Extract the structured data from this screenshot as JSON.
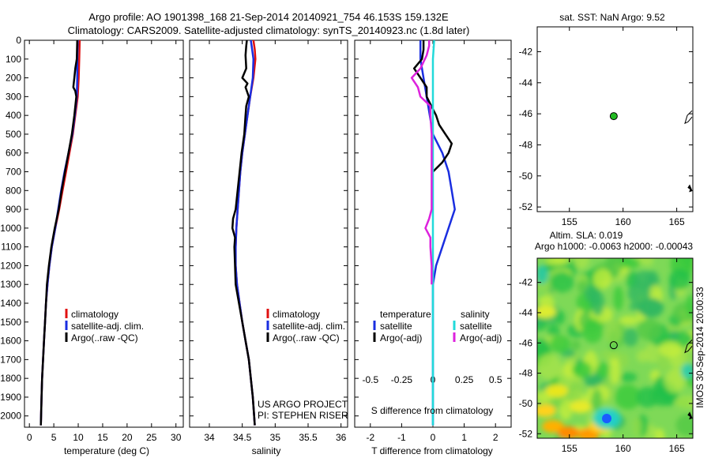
{
  "header": {
    "line1": "Argo profile: AO 1901398_168 21-Sep-2014 20140921_754 46.153S 159.132E",
    "line2": "Climatology: CARS2009. Satellite-adjusted climatology: synTS_20140923.nc (1.8d later)"
  },
  "colors": {
    "climatology": "#e01010",
    "satellite": "#1a2ee0",
    "argo": "#000000",
    "satellite_salinity": "#22dada",
    "argo_salinity": "#dd22dd",
    "float_marker": "#22bb22"
  },
  "chart_data": [
    {
      "type": "line",
      "id": "temperature-profile",
      "xlabel": "temperature (deg C)",
      "ylabel": "",
      "xlim": [
        -1,
        31.5
      ],
      "ylim": [
        2060,
        0
      ],
      "xticks": [
        "0",
        "5",
        "10",
        "15",
        "20",
        "25",
        "30"
      ],
      "xtick_values": [
        0,
        5,
        10,
        15,
        20,
        25,
        30
      ],
      "yticks": [
        "0",
        "100",
        "200",
        "300",
        "400",
        "500",
        "600",
        "700",
        "800",
        "900",
        "1000",
        "1100",
        "1200",
        "1300",
        "1400",
        "1500",
        "1600",
        "1700",
        "1800",
        "1900",
        "2000"
      ],
      "ytick_values": [
        0,
        100,
        200,
        300,
        400,
        500,
        600,
        700,
        800,
        900,
        1000,
        1100,
        1200,
        1300,
        1400,
        1500,
        1600,
        1700,
        1800,
        1900,
        2000
      ],
      "legend": [
        "climatology",
        "satellite-adj. clim.",
        "Argo(..raw -QC)"
      ],
      "series": [
        {
          "name": "climatology",
          "color": "#e01010",
          "depth": [
            0,
            100,
            200,
            300,
            400,
            500,
            600,
            700,
            800,
            900,
            1000,
            1100,
            1200,
            1300,
            1400,
            1500,
            1600,
            1700,
            1800,
            1900,
            2000,
            2050
          ],
          "values": [
            10.3,
            10.2,
            10.1,
            9.9,
            9.4,
            8.9,
            8.2,
            7.5,
            6.8,
            6.1,
            5.3,
            4.6,
            4.1,
            3.7,
            3.4,
            3.2,
            3.0,
            2.8,
            2.6,
            2.5,
            2.4,
            2.35
          ]
        },
        {
          "name": "satellite-adj. clim.",
          "color": "#1a2ee0",
          "depth": [
            0,
            100,
            200,
            300,
            400,
            500,
            600,
            700,
            800,
            900,
            1000,
            1100,
            1200,
            1300,
            1400,
            1500,
            1600,
            1700,
            1800,
            1900,
            2000,
            2050
          ],
          "values": [
            9.9,
            9.8,
            9.8,
            9.7,
            9.3,
            8.8,
            8.0,
            7.2,
            6.5,
            5.9,
            5.3,
            4.6,
            4.1,
            3.7,
            3.4,
            3.2,
            3.0,
            2.8,
            2.6,
            2.5,
            2.4,
            2.35
          ]
        },
        {
          "name": "Argo(..raw -QC)",
          "color": "#000000",
          "depth": [
            0,
            100,
            150,
            200,
            250,
            270,
            300,
            400,
            500,
            600,
            700,
            800,
            900,
            1000,
            1100,
            1200,
            1300,
            1400,
            1500,
            1600,
            1700,
            1800,
            1900,
            2000,
            2050
          ],
          "values": [
            9.8,
            9.7,
            9.4,
            9.2,
            9.0,
            9.4,
            9.6,
            9.2,
            8.7,
            8.0,
            7.3,
            6.6,
            6.0,
            5.2,
            4.5,
            4.0,
            3.6,
            3.4,
            3.2,
            3.0,
            2.8,
            2.6,
            2.5,
            2.4,
            2.35
          ]
        }
      ]
    },
    {
      "type": "line",
      "id": "salinity-profile",
      "xlabel": "salinity",
      "xlim": [
        33.7,
        36.1
      ],
      "ylim": [
        2060,
        0
      ],
      "xticks": [
        "34",
        "34.5",
        "35",
        "35.5",
        "36"
      ],
      "xtick_values": [
        34,
        34.5,
        35,
        35.5,
        36
      ],
      "legend": [
        "climatology",
        "satellite-adj. clim.",
        "Argo(..raw -QC)"
      ],
      "annotation": [
        "US ARGO PROJECT",
        "PI: STEPHEN RISER"
      ],
      "series": [
        {
          "name": "climatology",
          "color": "#e01010",
          "depth": [
            0,
            50,
            100,
            200,
            300,
            400,
            500,
            600,
            700,
            800,
            900,
            1000,
            1100,
            1200,
            1300,
            1400,
            1500,
            1600,
            1700,
            1800,
            1900,
            2000,
            2050
          ],
          "values": [
            34.67,
            34.69,
            34.7,
            34.67,
            34.62,
            34.58,
            34.54,
            34.5,
            34.47,
            34.45,
            34.43,
            34.41,
            34.4,
            34.4,
            34.42,
            34.46,
            34.5,
            34.55,
            34.6,
            34.63,
            34.66,
            34.68,
            34.69
          ]
        },
        {
          "name": "satellite-adj. clim.",
          "color": "#1a2ee0",
          "depth": [
            0,
            50,
            100,
            200,
            300,
            400,
            500,
            600,
            700,
            800,
            900,
            1000,
            1100,
            1200,
            1300,
            1400,
            1500,
            1600,
            1700,
            1800,
            1900,
            2000,
            2050
          ],
          "values": [
            34.63,
            34.65,
            34.67,
            34.66,
            34.62,
            34.58,
            34.54,
            34.5,
            34.47,
            34.45,
            34.43,
            34.41,
            34.4,
            34.4,
            34.42,
            34.46,
            34.5,
            34.55,
            34.6,
            34.63,
            34.66,
            34.68,
            34.69
          ]
        },
        {
          "name": "Argo(..raw -QC)",
          "color": "#000000",
          "depth": [
            0,
            30,
            80,
            150,
            200,
            230,
            250,
            300,
            350,
            400,
            500,
            600,
            700,
            800,
            900,
            950,
            1000,
            1050,
            1100,
            1200,
            1300,
            1400,
            1500,
            1600,
            1700,
            1800,
            1900,
            2000,
            2050
          ],
          "values": [
            34.57,
            34.56,
            34.55,
            34.56,
            34.5,
            34.58,
            34.55,
            34.6,
            34.56,
            34.55,
            34.53,
            34.49,
            34.46,
            34.43,
            34.4,
            34.36,
            34.35,
            34.39,
            34.38,
            34.39,
            34.4,
            34.45,
            34.5,
            34.55,
            34.6,
            34.63,
            34.66,
            34.68,
            34.69
          ]
        }
      ]
    },
    {
      "type": "line",
      "id": "difference-profile",
      "xlabel": "T difference from climatology",
      "xlabel_top": "S difference from climatology",
      "xlim": [
        -2.5,
        2.5
      ],
      "ylim": [
        2060,
        0
      ],
      "xticks": [
        "-2",
        "-1",
        "0",
        "1",
        "2"
      ],
      "xtick_values": [
        -2,
        -1,
        0,
        1,
        2
      ],
      "s_xticks": [
        "-0.5",
        "-0.25",
        "0",
        "0.25",
        "0.5"
      ],
      "s_xtick_values": [
        -0.5,
        -0.25,
        0,
        0.25,
        0.5
      ],
      "legend_temperature_title": "temperature",
      "legend_salinity_title": "salinity",
      "legend": [
        "satellite",
        "Argo(-adj)",
        "satellite",
        "Argo(-adj)"
      ],
      "series": [
        {
          "name": "satellite",
          "group": "temperature",
          "color": "#1a2ee0",
          "depth": [
            0,
            100,
            200,
            300,
            400,
            500,
            600,
            700,
            800,
            900,
            1000,
            1100,
            1200,
            1300,
            1400,
            1500,
            1600,
            1700,
            1800,
            1900,
            2000,
            2050
          ],
          "values": [
            -0.4,
            -0.4,
            -0.3,
            -0.2,
            -0.1,
            0.0,
            0.3,
            0.5,
            0.6,
            0.7,
            0.5,
            0.3,
            0.1,
            0.0,
            0.0,
            0.0,
            0.0,
            0.0,
            0.0,
            0.0,
            0.0,
            0.0
          ]
        },
        {
          "name": "Argo(-adj)",
          "group": "temperature",
          "color": "#000000",
          "depth": [
            0,
            50,
            100,
            150,
            200,
            250,
            300,
            350,
            400,
            450,
            500,
            550,
            600,
            650,
            700
          ],
          "values": [
            -0.3,
            -0.3,
            -0.35,
            -0.6,
            -0.4,
            -0.2,
            -0.2,
            -0.05,
            0.1,
            0.2,
            0.4,
            0.6,
            0.5,
            0.3,
            0.0
          ]
        },
        {
          "name": "satellite",
          "group": "salinity",
          "color": "#22dada",
          "depth": [
            0,
            100,
            200,
            300,
            400,
            500,
            600,
            700,
            800,
            900,
            1000,
            1100,
            1200,
            1300,
            1400,
            1500,
            1600,
            1700,
            1800,
            1900,
            2000,
            2050
          ],
          "values": [
            0.01,
            0.0,
            0.0,
            0.0,
            0.0,
            0.0,
            0.0,
            0.0,
            0.0,
            0.0,
            0.0,
            0.0,
            0.0,
            0.0,
            0.0,
            0.0,
            0.0,
            0.0,
            0.0,
            0.0,
            0.0,
            0.0
          ]
        },
        {
          "name": "Argo(-adj)",
          "group": "salinity",
          "color": "#dd22dd",
          "depth": [
            0,
            30,
            80,
            150,
            200,
            250,
            300,
            350,
            400,
            500,
            700,
            900,
            950,
            1000,
            1050,
            1100,
            1200,
            1300
          ],
          "values": [
            -0.03,
            -0.03,
            -0.05,
            -0.1,
            -0.17,
            -0.12,
            -0.1,
            -0.02,
            -0.02,
            -0.01,
            -0.01,
            -0.01,
            -0.03,
            -0.06,
            -0.02,
            -0.02,
            -0.01,
            -0.01
          ]
        }
      ]
    },
    {
      "type": "scatter",
      "id": "sst-map",
      "title": "sat. SST: NaN Argo: 9.52",
      "xlim": [
        152,
        166.5
      ],
      "ylim": [
        -52.3,
        -40.4
      ],
      "xticks": [
        "155",
        "160",
        "165"
      ],
      "xtick_values": [
        155,
        160,
        165
      ],
      "yticks": [
        "-42",
        "-44",
        "-46",
        "-48",
        "-50",
        "-52"
      ],
      "ytick_values": [
        -42,
        -44,
        -46,
        -48,
        -50,
        -52
      ],
      "points": [
        {
          "lon": 159.13,
          "lat": -46.15
        }
      ]
    },
    {
      "type": "heatmap",
      "id": "sla-map",
      "title": "Altim. SLA: 0.019",
      "subtitle": "Argo h1000: -0.0063 h2000: -0.00043",
      "side_label": "IMOS 30-Sep-2014 20:00:33",
      "xlim": [
        152,
        166.5
      ],
      "ylim": [
        -52.3,
        -40.4
      ],
      "xticks": [
        "155",
        "160",
        "165"
      ],
      "xtick_values": [
        155,
        160,
        165
      ],
      "yticks": [
        "-42",
        "-44",
        "-46",
        "-48",
        "-50",
        "-52"
      ],
      "ytick_values": [
        -42,
        -44,
        -46,
        -48,
        -50,
        -52
      ],
      "points": [
        {
          "lon": 159.13,
          "lat": -46.15
        }
      ]
    }
  ]
}
